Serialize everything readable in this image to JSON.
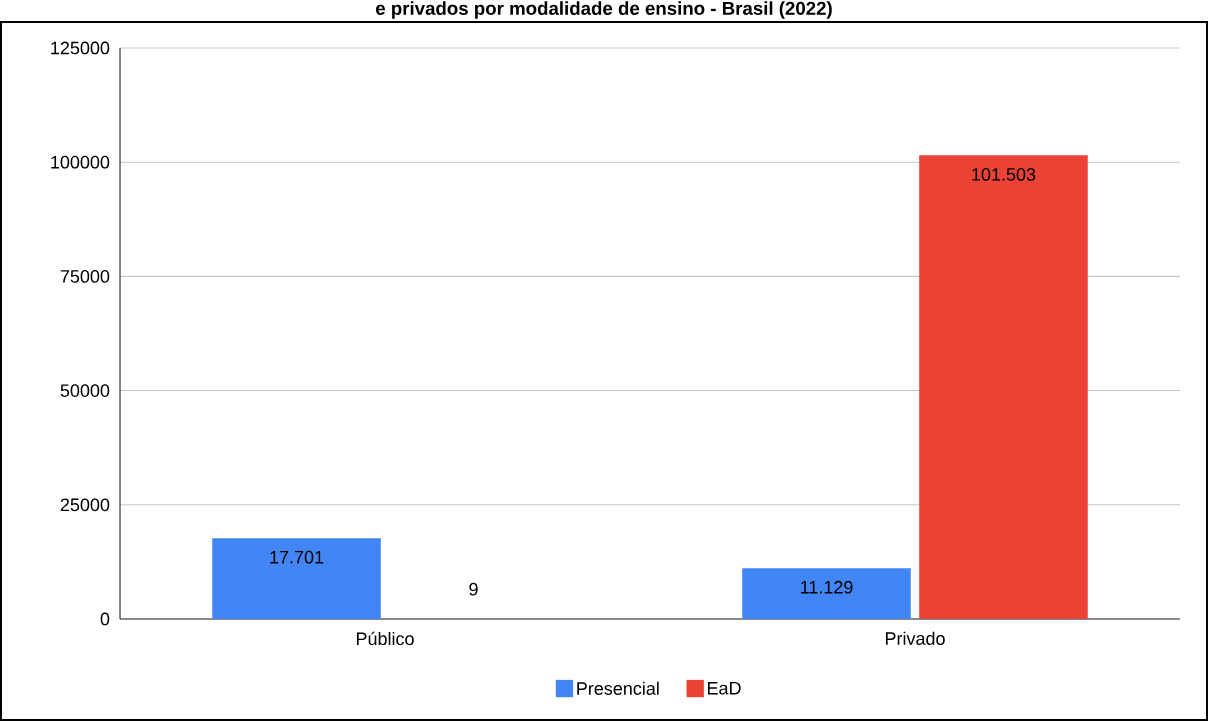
{
  "chart_data": {
    "type": "bar",
    "title": "e privados por modalidade de ensino - Brasil (2022)",
    "categories": [
      "Público",
      "Privado"
    ],
    "series": [
      {
        "name": "Presencial",
        "color": "#4285f4",
        "values": [
          17701,
          11129
        ],
        "value_labels": [
          "17.701",
          "11.129"
        ]
      },
      {
        "name": "EaD",
        "color": "#ea4335",
        "values": [
          9,
          101503
        ],
        "value_labels": [
          "9",
          "101.503"
        ]
      }
    ],
    "ylim": [
      0,
      125000
    ],
    "yticks": [
      0,
      25000,
      50000,
      75000,
      100000,
      125000
    ],
    "grid": "y",
    "legend": "bottom"
  }
}
